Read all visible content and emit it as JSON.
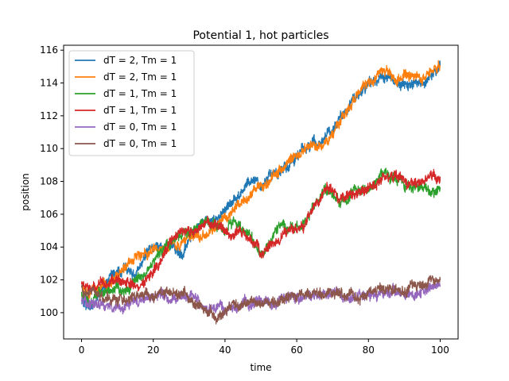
{
  "chart_data": {
    "type": "line",
    "title": "Potential 1, hot particles",
    "xlabel": "time",
    "ylabel": "position",
    "xlim": [
      -5,
      105
    ],
    "ylim": [
      98.4,
      116.3
    ],
    "xticks": [
      0,
      20,
      40,
      60,
      80,
      100
    ],
    "yticks": [
      100,
      102,
      104,
      106,
      108,
      110,
      112,
      114,
      116
    ],
    "grid": false,
    "legend_position": "top-left",
    "noise_amplitude": 0.35,
    "series": [
      {
        "name": "dT = 2, Tm = 1",
        "color": "#1f77b4",
        "x": [
          0,
          2,
          5,
          8,
          10,
          12,
          15,
          18,
          20,
          22,
          25,
          28,
          30,
          32,
          35,
          38,
          40,
          42,
          45,
          48,
          50,
          52,
          55,
          58,
          60,
          62,
          65,
          68,
          70,
          72,
          75,
          78,
          80,
          82,
          85,
          88,
          90,
          92,
          95,
          98,
          100
        ],
        "y": [
          100.6,
          100.2,
          101.2,
          102.0,
          102.5,
          102.8,
          102.3,
          103.5,
          104.0,
          103.8,
          104.2,
          103.6,
          104.5,
          105.0,
          105.8,
          105.6,
          106.2,
          106.8,
          107.4,
          108.2,
          107.8,
          108.3,
          108.5,
          109.0,
          109.5,
          110.0,
          110.2,
          110.6,
          111.0,
          111.8,
          112.6,
          113.6,
          114.2,
          114.3,
          114.5,
          114.0,
          113.8,
          114.1,
          113.7,
          114.5,
          115.1
        ]
      },
      {
        "name": "dT = 2, Tm = 1",
        "color": "#ff7f0e",
        "x": [
          0,
          2,
          5,
          8,
          10,
          12,
          15,
          18,
          20,
          22,
          25,
          28,
          30,
          32,
          35,
          38,
          40,
          42,
          45,
          48,
          50,
          52,
          55,
          58,
          60,
          62,
          65,
          68,
          70,
          72,
          75,
          78,
          80,
          82,
          85,
          88,
          90,
          92,
          95,
          98,
          100
        ],
        "y": [
          101.5,
          101.2,
          101.6,
          102.0,
          102.2,
          102.8,
          103.2,
          103.6,
          103.9,
          103.7,
          104.0,
          104.2,
          104.5,
          104.6,
          104.8,
          105.3,
          105.8,
          106.2,
          106.6,
          107.2,
          107.8,
          108.1,
          108.5,
          109.1,
          109.6,
          109.9,
          110.3,
          110.5,
          110.9,
          111.6,
          112.6,
          113.6,
          114.0,
          114.2,
          114.6,
          114.2,
          114.4,
          114.6,
          114.3,
          114.7,
          115.0
        ]
      },
      {
        "name": "dT = 1, Tm = 1",
        "color": "#2ca02c",
        "x": [
          0,
          2,
          5,
          8,
          10,
          12,
          15,
          18,
          20,
          22,
          25,
          28,
          30,
          32,
          35,
          38,
          40,
          42,
          45,
          48,
          50,
          52,
          55,
          58,
          60,
          62,
          65,
          68,
          70,
          72,
          75,
          78,
          80,
          82,
          85,
          88,
          90,
          92,
          95,
          98,
          100
        ],
        "y": [
          101.0,
          100.8,
          101.2,
          101.5,
          101.6,
          101.3,
          101.8,
          102.4,
          103.0,
          103.6,
          104.2,
          104.6,
          105.0,
          105.2,
          105.6,
          105.3,
          105.0,
          105.4,
          105.0,
          104.4,
          103.6,
          104.2,
          105.2,
          105.0,
          105.2,
          105.4,
          106.5,
          107.5,
          107.0,
          106.6,
          107.3,
          107.5,
          107.6,
          108.0,
          108.5,
          108.1,
          107.8,
          107.5,
          107.8,
          107.5,
          107.8
        ]
      },
      {
        "name": "dT = 1, Tm = 1",
        "color": "#d62728",
        "x": [
          0,
          2,
          5,
          8,
          10,
          12,
          15,
          18,
          20,
          22,
          25,
          28,
          30,
          32,
          35,
          38,
          40,
          42,
          45,
          48,
          50,
          52,
          55,
          58,
          60,
          62,
          65,
          68,
          70,
          72,
          75,
          78,
          80,
          82,
          85,
          88,
          90,
          92,
          95,
          98,
          100
        ],
        "y": [
          101.8,
          101.4,
          101.6,
          101.9,
          102.0,
          101.9,
          101.7,
          101.8,
          102.3,
          103.3,
          104.5,
          104.9,
          104.8,
          105.1,
          105.6,
          105.4,
          105.0,
          104.7,
          104.9,
          104.2,
          103.8,
          103.9,
          104.5,
          105.1,
          105.2,
          105.3,
          106.6,
          107.7,
          107.4,
          106.9,
          107.3,
          107.4,
          107.6,
          107.9,
          108.2,
          108.2,
          108.0,
          107.7,
          108.2,
          108.4,
          108.0
        ]
      },
      {
        "name": "dT = 0, Tm = 1",
        "color": "#9467bd",
        "x": [
          0,
          2,
          5,
          8,
          10,
          12,
          15,
          18,
          20,
          22,
          25,
          28,
          30,
          32,
          35,
          38,
          40,
          42,
          45,
          48,
          50,
          52,
          55,
          58,
          60,
          62,
          65,
          68,
          70,
          72,
          75,
          78,
          80,
          82,
          85,
          88,
          90,
          92,
          95,
          98,
          100
        ],
        "y": [
          100.8,
          100.5,
          100.6,
          100.4,
          100.3,
          100.5,
          100.6,
          100.9,
          101.0,
          101.1,
          100.9,
          101.0,
          100.9,
          100.6,
          100.3,
          100.1,
          100.2,
          100.4,
          100.5,
          100.5,
          100.6,
          100.7,
          100.8,
          100.9,
          101.0,
          101.1,
          101.0,
          101.2,
          101.1,
          101.2,
          101.0,
          101.1,
          101.0,
          101.1,
          101.2,
          101.3,
          101.2,
          101.3,
          101.4,
          101.5,
          101.8
        ]
      },
      {
        "name": "dT = 0, Tm = 1",
        "color": "#8c564b",
        "x": [
          0,
          2,
          5,
          8,
          10,
          12,
          15,
          18,
          20,
          22,
          25,
          28,
          30,
          32,
          35,
          38,
          40,
          42,
          45,
          48,
          50,
          52,
          55,
          58,
          60,
          62,
          65,
          68,
          70,
          72,
          75,
          78,
          80,
          82,
          85,
          88,
          90,
          92,
          95,
          98,
          100
        ],
        "y": [
          101.5,
          101.2,
          101.0,
          100.8,
          100.6,
          100.7,
          100.9,
          101.1,
          101.2,
          101.1,
          101.3,
          101.2,
          101.0,
          100.6,
          100.0,
          99.6,
          100.0,
          100.3,
          100.5,
          100.6,
          100.6,
          100.7,
          100.8,
          100.9,
          101.0,
          101.1,
          101.2,
          101.3,
          101.2,
          101.1,
          101.1,
          101.0,
          101.0,
          101.2,
          101.3,
          101.4,
          101.4,
          101.6,
          101.7,
          101.9,
          102.1
        ]
      }
    ]
  }
}
